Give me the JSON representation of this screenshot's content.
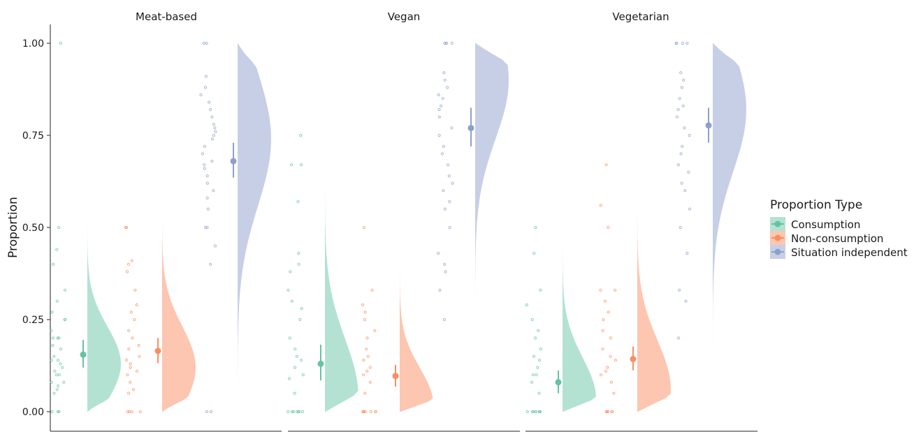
{
  "chart_data": {
    "type": "raincloud",
    "title": "",
    "ylabel": "Proportion",
    "xlabel": "",
    "ylim": [
      0,
      1
    ],
    "y_ticks": [
      "0.00",
      "0.25",
      "0.50",
      "0.75",
      "1.00"
    ],
    "facets": [
      "Meat-based",
      "Vegan",
      "Vegetarian"
    ],
    "legend": {
      "title": "Proportion Type",
      "position": "right",
      "items": [
        {
          "name": "Consumption",
          "color": "#66c2a5"
        },
        {
          "name": "Non-consumption",
          "color": "#fc8d62"
        },
        {
          "name": "Situation independent",
          "color": "#8da0cb"
        }
      ]
    },
    "series": [
      {
        "name": "Consumption",
        "means": [
          0.155,
          0.13,
          0.08
        ],
        "ci_low": [
          0.12,
          0.085,
          0.05
        ],
        "ci_high": [
          0.195,
          0.182,
          0.112
        ],
        "density_peak": [
          0.13,
          0.04,
          0.035
        ],
        "density_range": [
          [
            0,
            0.55
          ],
          [
            0,
            0.86
          ],
          [
            0,
            0.61
          ]
        ]
      },
      {
        "name": "Non-consumption",
        "means": [
          0.165,
          0.097,
          0.143
        ],
        "ci_low": [
          0.132,
          0.068,
          0.112
        ],
        "ci_high": [
          0.2,
          0.127,
          0.177
        ],
        "density_peak": [
          0.12,
          0.02,
          0.06
        ],
        "density_range": [
          [
            0,
            0.61
          ],
          [
            0,
            0.54
          ],
          [
            0,
            0.73
          ]
        ]
      },
      {
        "name": "Situation independent",
        "means": [
          0.68,
          0.77,
          0.777
        ],
        "ci_low": [
          0.635,
          0.72,
          0.73
        ],
        "ci_high": [
          0.73,
          0.825,
          0.825
        ],
        "density_peak": [
          0.74,
          0.9,
          0.82
        ],
        "density_range": [
          [
            0,
            1.0
          ],
          [
            0.12,
            1.0
          ],
          [
            0.07,
            1.0
          ]
        ]
      }
    ],
    "points": [
      [
        [
          0,
          0,
          0,
          0.05,
          0.06,
          0.07,
          0.08,
          0.08,
          0.1,
          0.1,
          0.11,
          0.12,
          0.13,
          0.14,
          0.14,
          0.15,
          0.17,
          0.18,
          0.2,
          0.2,
          0.2,
          0.22,
          0.25,
          0.25,
          0.27,
          0.3,
          0.33,
          0.4,
          0.44,
          0.5,
          1.0
        ],
        [
          0,
          0,
          0,
          0,
          0.05,
          0.06,
          0.08,
          0.1,
          0.11,
          0.12,
          0.13,
          0.14,
          0.15,
          0.17,
          0.18,
          0.2,
          0.22,
          0.25,
          0.27,
          0.29,
          0.33,
          0.38,
          0.4,
          0.41,
          0.5,
          0.5
        ],
        [
          0,
          0,
          0.4,
          0.45,
          0.5,
          0.5,
          0.55,
          0.58,
          0.6,
          0.62,
          0.64,
          0.66,
          0.67,
          0.68,
          0.7,
          0.72,
          0.74,
          0.75,
          0.76,
          0.77,
          0.78,
          0.8,
          0.82,
          0.84,
          0.86,
          0.88,
          0.91,
          1.0,
          1.0
        ]
      ],
      [
        [
          0,
          0,
          0,
          0,
          0,
          0,
          0,
          0.05,
          0.09,
          0.1,
          0.12,
          0.14,
          0.15,
          0.17,
          0.2,
          0.25,
          0.28,
          0.3,
          0.33,
          0.38,
          0.4,
          0.43,
          0.57,
          0.67,
          0.67,
          0.75
        ],
        [
          0,
          0,
          0,
          0,
          0,
          0,
          0,
          0.05,
          0.08,
          0.1,
          0.11,
          0.12,
          0.14,
          0.15,
          0.17,
          0.2,
          0.22,
          0.25,
          0.27,
          0.29,
          0.33,
          0.5
        ],
        [
          0.25,
          0.33,
          0.38,
          0.4,
          0.43,
          0.5,
          0.55,
          0.57,
          0.6,
          0.62,
          0.64,
          0.67,
          0.7,
          0.72,
          0.75,
          0.77,
          0.8,
          0.82,
          0.83,
          0.85,
          0.86,
          0.88,
          0.9,
          0.92,
          1.0,
          1.0,
          1.0,
          1.0
        ]
      ],
      [
        [
          0,
          0,
          0,
          0,
          0,
          0,
          0,
          0,
          0.05,
          0.08,
          0.1,
          0.1,
          0.12,
          0.14,
          0.15,
          0.17,
          0.2,
          0.22,
          0.25,
          0.29,
          0.33,
          0.43,
          0.5
        ],
        [
          0,
          0,
          0,
          0,
          0,
          0.05,
          0.08,
          0.1,
          0.11,
          0.12,
          0.14,
          0.15,
          0.17,
          0.2,
          0.22,
          0.25,
          0.27,
          0.3,
          0.33,
          0.33,
          0.5,
          0.56,
          0.67
        ],
        [
          0.2,
          0.3,
          0.33,
          0.43,
          0.5,
          0.55,
          0.6,
          0.62,
          0.65,
          0.67,
          0.7,
          0.72,
          0.75,
          0.77,
          0.8,
          0.82,
          0.83,
          0.85,
          0.88,
          0.9,
          0.92,
          1.0,
          1.0,
          1.0,
          1.0
        ]
      ]
    ]
  }
}
